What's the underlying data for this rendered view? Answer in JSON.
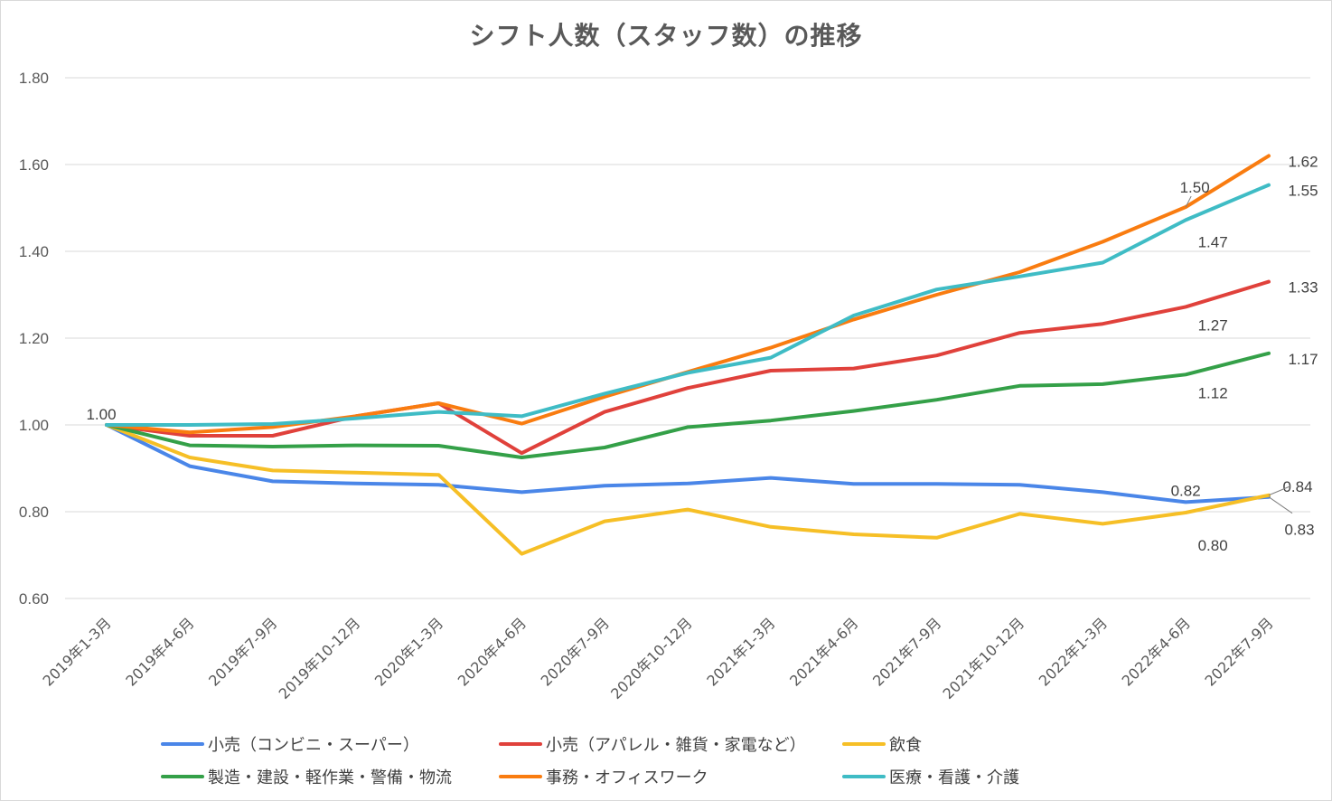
{
  "chart_data": {
    "type": "line",
    "title": "シフト人数（スタッフ数）の推移",
    "xlabel": "",
    "ylabel": "",
    "ylim": [
      0.6,
      1.8
    ],
    "yticks": [
      "0.60",
      "0.80",
      "1.00",
      "1.20",
      "1.40",
      "1.60",
      "1.80"
    ],
    "categories": [
      "2019年1-3月",
      "2019年4-6月",
      "2019年7-9月",
      "2019年10-12月",
      "2020年1-3月",
      "2020年4-6月",
      "2020年7-9月",
      "2020年10-12月",
      "2021年1-3月",
      "2021年4-6月",
      "2021年7-9月",
      "2021年10-12月",
      "2022年1-3月",
      "2022年4-6月",
      "2022年7-9月"
    ],
    "legend_position": "bottom",
    "grid": true,
    "series": [
      {
        "name": "小売（コンビニ・スーパー）",
        "color": "#4a86e8",
        "values": [
          1.0,
          0.905,
          0.87,
          0.865,
          0.862,
          0.845,
          0.86,
          0.865,
          0.878,
          0.864,
          0.864,
          0.862,
          0.845,
          0.822,
          0.834
        ]
      },
      {
        "name": "小売（アパレル・雑貨・家電など）",
        "color": "#e0413b",
        "values": [
          1.0,
          0.975,
          0.975,
          1.02,
          1.05,
          0.935,
          1.03,
          1.085,
          1.125,
          1.13,
          1.16,
          1.212,
          1.233,
          1.272,
          1.33
        ]
      },
      {
        "name": "飲食",
        "color": "#f6bf26",
        "values": [
          1.0,
          0.925,
          0.895,
          0.89,
          0.885,
          0.703,
          0.778,
          0.805,
          0.765,
          0.748,
          0.74,
          0.795,
          0.772,
          0.798,
          0.838
        ]
      },
      {
        "name": "製造・建設・軽作業・警備・物流",
        "color": "#34a048",
        "values": [
          1.0,
          0.953,
          0.95,
          0.953,
          0.952,
          0.925,
          0.948,
          0.995,
          1.01,
          1.032,
          1.058,
          1.09,
          1.094,
          1.116,
          1.165
        ]
      },
      {
        "name": "事務・オフィスワーク",
        "color": "#f97c10",
        "values": [
          1.0,
          0.983,
          0.995,
          1.02,
          1.05,
          1.003,
          1.065,
          1.122,
          1.178,
          1.243,
          1.3,
          1.352,
          1.422,
          1.502,
          1.62
        ]
      },
      {
        "name": "医療・看護・介護",
        "color": "#3fbcc5",
        "values": [
          1.0,
          1.0,
          1.002,
          1.015,
          1.03,
          1.02,
          1.072,
          1.12,
          1.155,
          1.252,
          1.312,
          1.342,
          1.374,
          1.472,
          1.553
        ]
      }
    ],
    "data_labels": [
      {
        "series": "all",
        "index": 0,
        "text": "1.00"
      },
      {
        "series": "事務・オフィスワーク",
        "index": 14,
        "text": "1.62"
      },
      {
        "series": "事務・オフィスワーク",
        "index": 13,
        "text": "1.50"
      },
      {
        "series": "医療・看護・介護",
        "index": 14,
        "text": "1.55"
      },
      {
        "series": "医療・看護・介護",
        "index": 13,
        "text": "1.47"
      },
      {
        "series": "小売（アパレル・雑貨・家電など）",
        "index": 14,
        "text": "1.33"
      },
      {
        "series": "小売（アパレル・雑貨・家電など）",
        "index": 13,
        "text": "1.27"
      },
      {
        "series": "製造・建設・軽作業・警備・物流",
        "index": 14,
        "text": "1.17"
      },
      {
        "series": "製造・建設・軽作業・警備・物流",
        "index": 13,
        "text": "1.12"
      },
      {
        "series": "飲食",
        "index": 14,
        "text": "0.84"
      },
      {
        "series": "小売（コンビニ・スーパー）",
        "index": 13,
        "text": "0.82"
      },
      {
        "series": "飲食",
        "index": 13,
        "text": "0.80"
      },
      {
        "series": "小売（コンビニ・スーパー）",
        "index": 14,
        "text": "0.83"
      }
    ]
  }
}
